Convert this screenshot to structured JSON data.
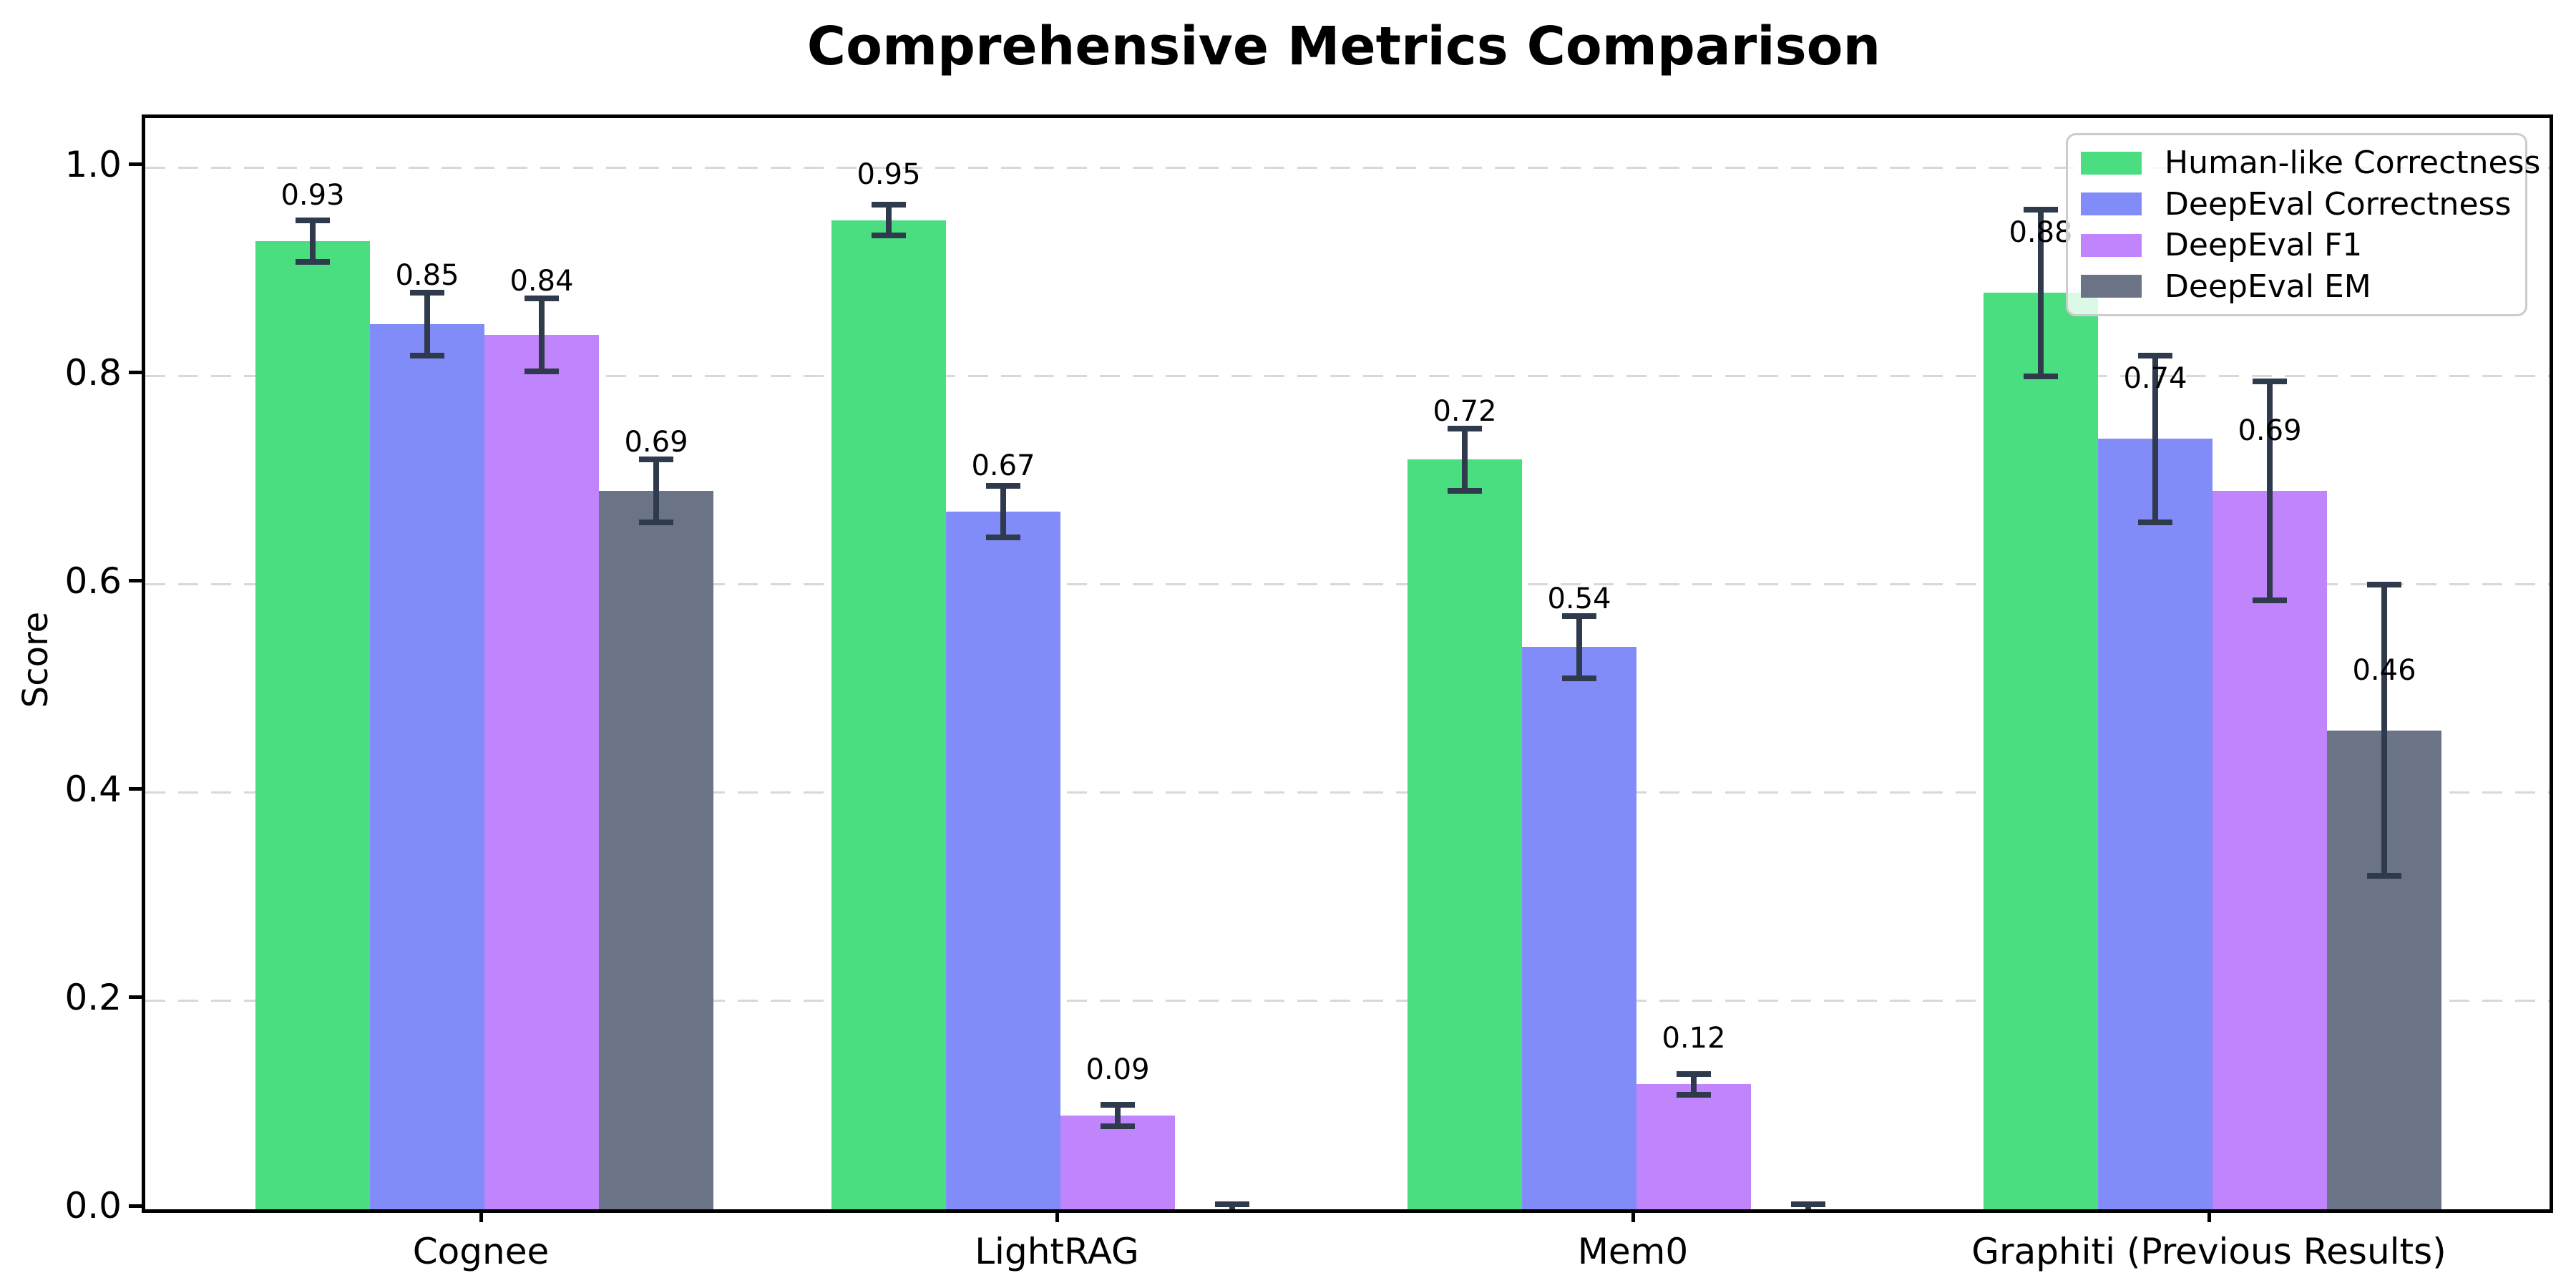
{
  "chart_data": {
    "type": "bar",
    "title": "Comprehensive Metrics Comparison",
    "xlabel": "",
    "ylabel": "Score",
    "categories": [
      "Cognee",
      "LightRAG",
      "Mem0",
      "Graphiti (Previous Results)"
    ],
    "series": [
      {
        "name": "Human-like Correctness",
        "color": "#4ade80",
        "values": [
          0.93,
          0.95,
          0.72,
          0.88
        ],
        "errors": [
          0.02,
          0.015,
          0.03,
          0.08
        ],
        "labels": [
          "0.93",
          "0.95",
          "0.72",
          "0.88"
        ]
      },
      {
        "name": "DeepEval Correctness",
        "color": "#818cf8",
        "values": [
          0.85,
          0.67,
          0.54,
          0.74
        ],
        "errors": [
          0.03,
          0.025,
          0.03,
          0.08
        ],
        "labels": [
          "0.85",
          "0.67",
          "0.54",
          "0.74"
        ]
      },
      {
        "name": "DeepEval F1",
        "color": "#c084fc",
        "values": [
          0.84,
          0.09,
          0.12,
          0.69
        ],
        "errors": [
          0.035,
          0.01,
          0.01,
          0.105
        ],
        "labels": [
          "0.84",
          "0.09",
          "0.12",
          "0.69"
        ]
      },
      {
        "name": "DeepEval EM",
        "color": "#6b7486",
        "values": [
          0.69,
          0.0,
          0.0,
          0.46
        ],
        "errors": [
          0.03,
          0.005,
          0.005,
          0.14
        ],
        "labels": [
          "0.69",
          "",
          "",
          "0.46"
        ]
      }
    ],
    "yticks": [
      "0.0",
      "0.2",
      "0.4",
      "0.6",
      "0.8",
      "1.0"
    ],
    "ylim": [
      0,
      1.048
    ],
    "grid": "horizontal-dashed",
    "legend_position": "upper right",
    "error_bar_color": "#2f3b4c",
    "grid_color": "#d8d8d8"
  }
}
